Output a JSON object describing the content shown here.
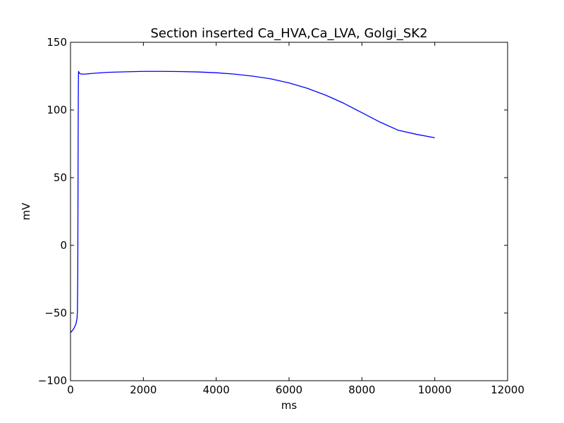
{
  "chart_data": {
    "type": "line",
    "title": "Section inserted Ca_HVA,Ca_LVA, Golgi_SK2",
    "xlabel": "ms",
    "ylabel": "mV",
    "xlim": [
      0,
      12000
    ],
    "ylim": [
      -100,
      150
    ],
    "xticks": [
      0,
      2000,
      4000,
      6000,
      8000,
      10000,
      12000
    ],
    "yticks": [
      -100,
      -50,
      0,
      50,
      100,
      150
    ],
    "xtick_labels": [
      "0",
      "2000",
      "4000",
      "6000",
      "8000",
      "10000",
      "12000"
    ],
    "ytick_labels": [
      "−100",
      "−50",
      "0",
      "50",
      "100",
      "150"
    ],
    "grid": false,
    "series": [
      {
        "color": "#0000ff",
        "x": [
          0,
          50,
          100,
          150,
          180,
          190,
          200,
          205,
          210,
          215,
          220,
          230,
          250,
          300,
          400,
          600,
          1000,
          1500,
          2000,
          2500,
          3000,
          3500,
          4000,
          4500,
          5000,
          5500,
          6000,
          6500,
          7000,
          7500,
          8000,
          8500,
          9000,
          9500,
          10000
        ],
        "y": [
          -64.5,
          -63,
          -61,
          -58,
          -54,
          -48,
          -20,
          30,
          80,
          115,
          128.5,
          128,
          127,
          126.5,
          126.5,
          127,
          127.8,
          128.2,
          128.5,
          128.5,
          128.4,
          128.1,
          127.5,
          126.5,
          125,
          123,
          120,
          116,
          111,
          105,
          98,
          91,
          85,
          82,
          79.5
        ]
      }
    ]
  }
}
